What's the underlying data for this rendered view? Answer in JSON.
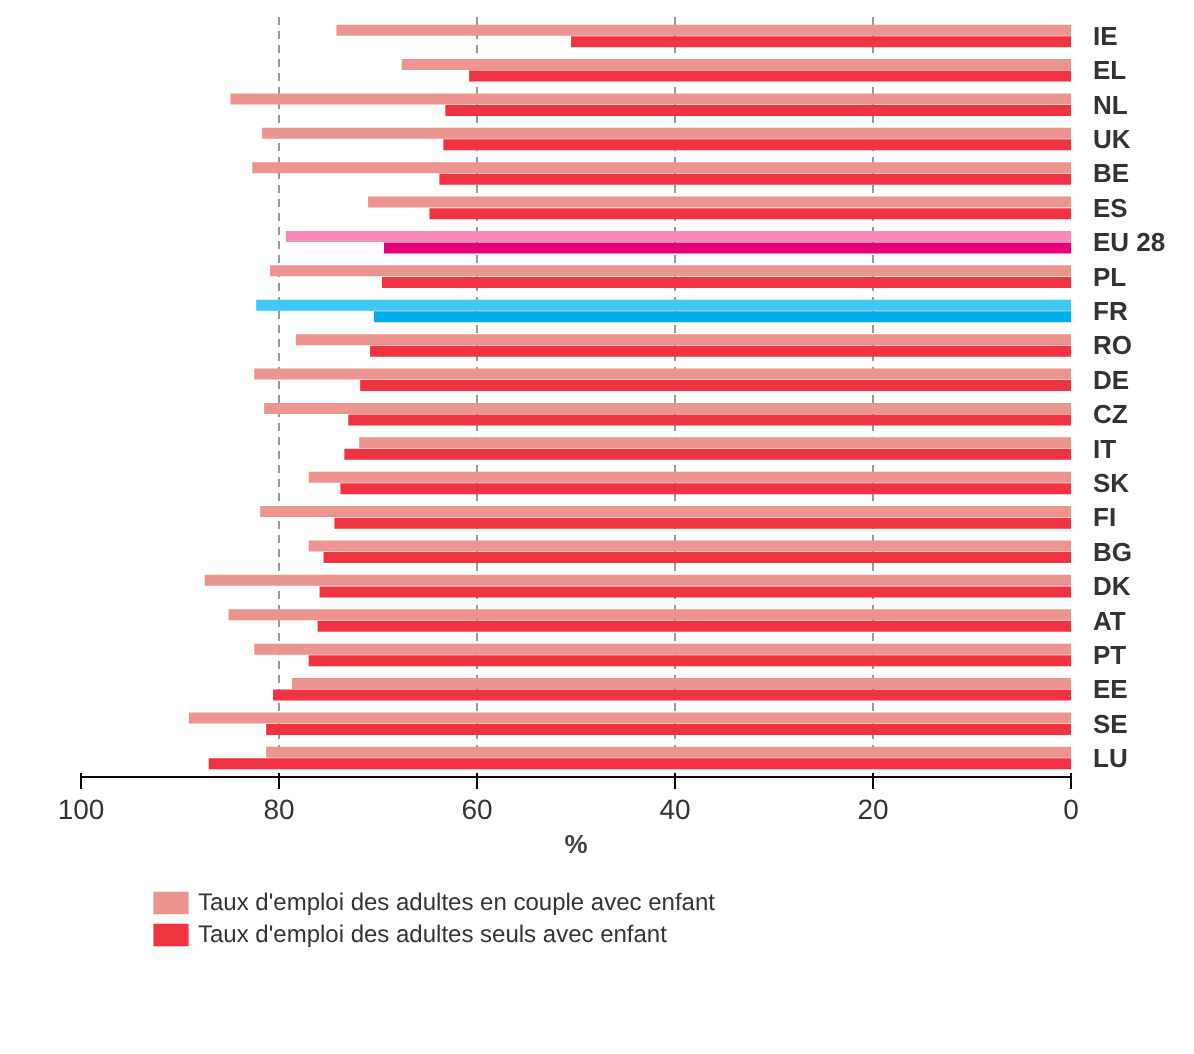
{
  "chart_data": {
    "type": "bar",
    "orientation": "horizontal",
    "xlabel": "%",
    "categories": [
      "IE",
      "EL",
      "NL",
      "UK",
      "BE",
      "ES",
      "EU 28",
      "PL",
      "FR",
      "RO",
      "DE",
      "CZ",
      "IT",
      "SK",
      "FI",
      "BG",
      "DK",
      "AT",
      "PT",
      "EE",
      "SE",
      "LU"
    ],
    "series": [
      {
        "name": "Taux d'emploi des adultes en couple avec enfant",
        "color": "#ec9590",
        "colors": [
          "#ec9590",
          "#ec9590",
          "#ec9590",
          "#ec9590",
          "#ec9590",
          "#ec9590",
          "#f48cb6",
          "#ec9590",
          "#40c8f4",
          "#ec9590",
          "#ec9590",
          "#ec9590",
          "#ec9590",
          "#ec9590",
          "#ec9590",
          "#ec9590",
          "#ec9590",
          "#ec9590",
          "#ec9590",
          "#ec9590",
          "#ec9590",
          "#ec9590"
        ],
        "values": [
          74.2,
          67.6,
          84.9,
          81.7,
          82.7,
          71.0,
          79.3,
          80.9,
          82.3,
          78.3,
          82.5,
          81.5,
          71.9,
          77.0,
          81.9,
          77.0,
          87.5,
          85.1,
          82.5,
          78.7,
          89.1,
          81.3
        ]
      },
      {
        "name": "Taux d'emploi des adultes seuls avec enfant",
        "color": "#ef3340",
        "colors": [
          "#ef3340",
          "#ef3340",
          "#ef3340",
          "#ef3340",
          "#ef3340",
          "#ef3340",
          "#e6007e",
          "#ef3340",
          "#00aeef",
          "#ef3340",
          "#ef3340",
          "#ef3340",
          "#ef3340",
          "#ef3340",
          "#ef3340",
          "#ef3340",
          "#ef3340",
          "#ef3340",
          "#ef3340",
          "#ef3340",
          "#ef3340",
          "#ef3340"
        ],
        "values": [
          50.5,
          60.8,
          63.2,
          63.4,
          63.8,
          64.8,
          69.4,
          69.6,
          70.4,
          70.8,
          71.8,
          73.0,
          73.4,
          73.8,
          74.4,
          75.5,
          75.9,
          76.1,
          77.0,
          80.6,
          81.3,
          87.1
        ]
      }
    ],
    "xlim": [
      100,
      0
    ],
    "xticks": [
      100,
      80,
      60,
      40,
      20,
      0
    ],
    "grid": "x",
    "legend": "bottom"
  }
}
